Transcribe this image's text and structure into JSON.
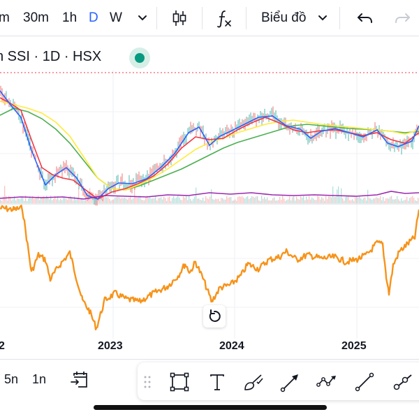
{
  "toolbar": {
    "interval_partial": "m",
    "intervals": [
      "30m",
      "1h",
      "D",
      "W"
    ],
    "active_interval": "D",
    "chart_type_label": "Biểu đồ",
    "icons": [
      "chevron-down-icon",
      "candles-icon",
      "indicators-icon",
      "chevron-down-icon",
      "undo-icon",
      "redo-icon"
    ]
  },
  "legend": {
    "text": "n SSI · 1D · HSX",
    "status": "market-open"
  },
  "chart": {
    "x_labels": [
      "2",
      "2023",
      "2024",
      "2025"
    ],
    "colors": {
      "price": "#f7931a",
      "ma_fast": "#2962ff",
      "ma_mid": "#f23645",
      "ma_slow": "#ffeb3b",
      "ma_long": "#4caf50",
      "volume_ma": "#9c27b0",
      "up": "#26a69a",
      "down": "#ef5350"
    }
  },
  "bottom": {
    "ranges": [
      "5n",
      "1n"
    ],
    "icons": [
      "go-to-date-icon",
      "drag-handle-icon",
      "rectangle-icon",
      "text-icon",
      "brush-icon",
      "arrow-icon",
      "path-icon",
      "trend-line-icon",
      "ray-icon"
    ]
  }
}
